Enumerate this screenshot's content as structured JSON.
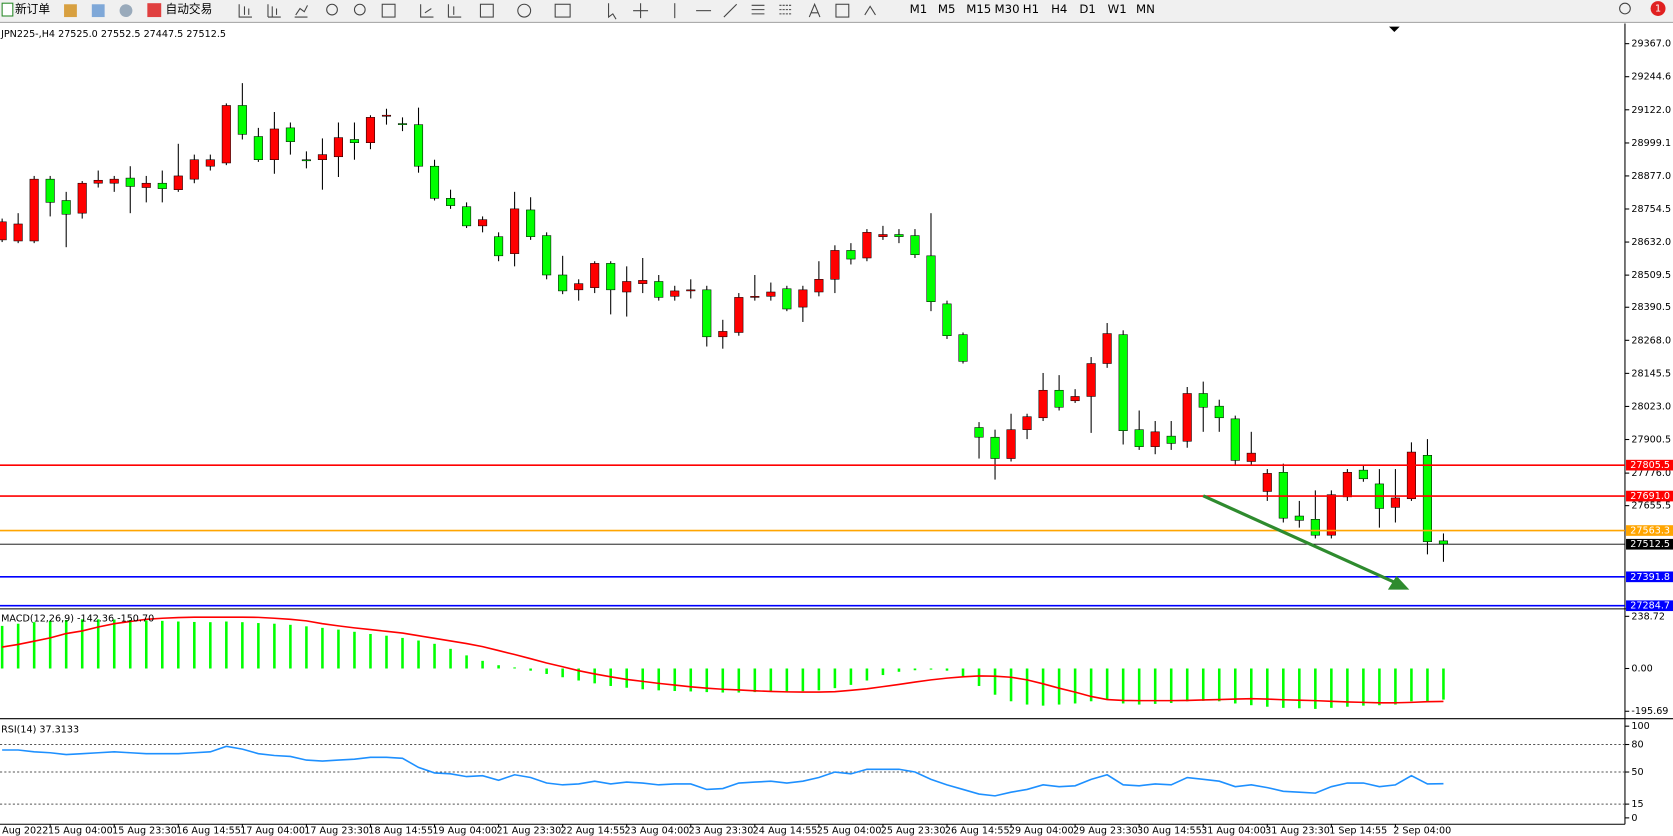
{
  "toolbar": {
    "new_order": "新订单",
    "auto_trading": "自动交易",
    "timeframes": [
      "M1",
      "M5",
      "M15",
      "M30",
      "H1",
      "H4",
      "D1",
      "W1",
      "MN"
    ],
    "notifications": "1"
  },
  "chart_data": [
    {
      "type": "candlestick",
      "title": "JPN225-,H4  27525.0 27552.5 27447.5 27512.5",
      "x_start_label": "Aug 2022",
      "categories": [
        null,
        null,
        null,
        "15 Aug 04:00",
        null,
        null,
        null,
        "15 Aug 23:30",
        null,
        null,
        null,
        "16 Aug 14:55",
        null,
        null,
        null,
        "17 Aug 04:00",
        null,
        null,
        null,
        "17 Aug 23:30",
        null,
        null,
        null,
        "18 Aug 14:55",
        null,
        null,
        null,
        "19 Aug 04:00",
        null,
        null,
        null,
        "21 Aug 23:30",
        null,
        null,
        null,
        "22 Aug 14:55",
        null,
        null,
        null,
        "23 Aug 04:00",
        null,
        null,
        null,
        "23 Aug 23:30",
        null,
        null,
        null,
        "24 Aug 14:55",
        null,
        null,
        null,
        "25 Aug 04:00",
        null,
        null,
        null,
        "25 Aug 23:30",
        null,
        null,
        null,
        "26 Aug 14:55",
        null,
        null,
        null,
        "29 Aug 04:00",
        null,
        null,
        null,
        "29 Aug 23:30",
        null,
        null,
        null,
        "30 Aug 14:55",
        null,
        null,
        null,
        "31 Aug 04:00",
        null,
        null,
        null,
        "31 Aug 23:30",
        null,
        null,
        null,
        "1 Sep 14:55",
        null,
        null,
        null,
        "2 Sep 04:00",
        null,
        null,
        null
      ],
      "open": [
        28640,
        28636,
        28636,
        28865,
        28786,
        28739,
        28850,
        28850,
        28869,
        28834,
        28850,
        28826,
        28865,
        28913,
        28925,
        29138,
        29023,
        28937,
        29055,
        28937,
        28937,
        28948,
        29012,
        29000,
        29098,
        29071,
        29067,
        28913,
        28794,
        28763,
        28692,
        28652,
        28589,
        28751,
        28656,
        28510,
        28455,
        28463,
        28553,
        28447,
        28478,
        28486,
        28431,
        28451,
        28455,
        28281,
        28297,
        28427,
        28431,
        28459,
        28391,
        28447,
        28494,
        28601,
        28573,
        28652,
        28660,
        28656,
        28581,
        28403,
        28289,
        27945,
        27909,
        27830,
        27937,
        27981,
        28083,
        28044,
        28060,
        28182,
        28289,
        27937,
        27874,
        27913,
        27894,
        28071,
        28024,
        27977,
        27819,
        27708,
        27779,
        27617,
        27605,
        27546,
        27688,
        27787,
        27736,
        27649,
        27681,
        27842,
        27525
      ],
      "high": [
        28719,
        28739,
        28877,
        28877,
        28818,
        28858,
        28897,
        28877,
        28913,
        28877,
        28897,
        28996,
        28956,
        28956,
        29146,
        29221,
        29055,
        29114,
        29075,
        28968,
        29016,
        29075,
        29075,
        29102,
        29126,
        29094,
        29130,
        28937,
        28826,
        28779,
        28727,
        28668,
        28818,
        28798,
        28668,
        28581,
        28494,
        28561,
        28561,
        28542,
        28573,
        28510,
        28470,
        28494,
        28470,
        28344,
        28443,
        28510,
        28482,
        28470,
        28470,
        28561,
        28620,
        28628,
        28680,
        28692,
        28680,
        28680,
        28739,
        28415,
        28297,
        27965,
        27937,
        27996,
        27996,
        28147,
        28139,
        28087,
        28206,
        28332,
        28305,
        28008,
        27969,
        27969,
        28095,
        28115,
        28048,
        27989,
        27929,
        27791,
        27811,
        27673,
        27712,
        27712,
        27791,
        27803,
        27791,
        27791,
        27890,
        27902,
        27552.5
      ],
      "low": [
        28632,
        28628,
        28628,
        28727,
        28613,
        28719,
        28834,
        28818,
        28739,
        28779,
        28779,
        28818,
        28850,
        28897,
        28917,
        29012,
        28929,
        28885,
        28956,
        28905,
        28826,
        28873,
        28937,
        28976,
        29067,
        29043,
        28889,
        28786,
        28755,
        28684,
        28668,
        28561,
        28542,
        28640,
        28494,
        28439,
        28415,
        28443,
        28364,
        28356,
        28443,
        28415,
        28415,
        28423,
        28245,
        28237,
        28285,
        28415,
        28415,
        28376,
        28336,
        28431,
        28443,
        28549,
        28561,
        28640,
        28628,
        28573,
        28376,
        28273,
        28182,
        27830,
        27752,
        27819,
        27902,
        27969,
        28008,
        28036,
        27925,
        28166,
        27882,
        27862,
        27846,
        27862,
        27870,
        27929,
        27929,
        27807,
        27807,
        27673,
        27593,
        27574,
        27534,
        27534,
        27673,
        27744,
        27574,
        27593,
        27673,
        27475,
        27447.5
      ],
      "close": [
        28707,
        28699,
        28865,
        28779,
        28735,
        28850,
        28861,
        28865,
        28838,
        28850,
        28830,
        28877,
        28937,
        28937,
        29138,
        29031,
        28937,
        29051,
        29004,
        28933,
        28956,
        29019,
        29000,
        29094,
        29102,
        29067,
        28913,
        28794,
        28767,
        28692,
        28715,
        28581,
        28755,
        28652,
        28510,
        28451,
        28478,
        28553,
        28455,
        28486,
        28490,
        28427,
        28451,
        28455,
        28281,
        28301,
        28427,
        28431,
        28447,
        28384,
        28455,
        28494,
        28601,
        28569,
        28668,
        28660,
        28652,
        28585,
        28411,
        28285,
        28190,
        27909,
        27830,
        27937,
        27985,
        28083,
        28020,
        28060,
        28182,
        28293,
        27933,
        27874,
        27929,
        27886,
        28071,
        28020,
        27981,
        27823,
        27850,
        27775,
        27609,
        27601,
        27546,
        27696,
        27779,
        27755,
        27645,
        27684,
        27854,
        27522,
        27512.5
      ],
      "up_color": "#ff0000",
      "down_color": "#00ff00",
      "ylim": [
        27277,
        29430
      ],
      "yticks": [
        {
          "value": 29367,
          "label": "29367.0"
        },
        29244.6,
        {
          "value": 29122,
          "label": "29122.0"
        },
        28999.1,
        {
          "value": 28877,
          "label": "28877.0"
        },
        28754.5,
        {
          "value": 28632,
          "label": "28632.0"
        },
        28509.5,
        28390.5,
        {
          "value": 28268,
          "label": "28268.0"
        },
        28145.5,
        {
          "value": 28023,
          "label": "28023.0"
        },
        27900.5,
        {
          "value": 27776,
          "label": "27776.0"
        },
        27655.5
      ],
      "levels": [
        {
          "value": 27805.5,
          "label": "27805.5",
          "color": "#ff0000"
        },
        {
          "value": 27691,
          "label": "27691.0",
          "color": "#ff0000"
        },
        {
          "value": 27563.3,
          "label": "27563.3",
          "color": "#ffa500"
        },
        {
          "value": 27512.5,
          "label": "27512.5",
          "color": "#000000"
        },
        {
          "value": 27391.8,
          "label": "27391.8",
          "color": "#0000ff"
        },
        {
          "value": 27284.7,
          "label": "27284.7",
          "color": "#0000ff"
        }
      ]
    },
    {
      "type": "macd",
      "title": "MACD(12,26,9) -142.36 -150.70",
      "ylim": [
        -220,
        268
      ],
      "yticks": [
        238.72,
        {
          "value": 0,
          "label": "0.00"
        },
        -195.69
      ],
      "series": [
        {
          "type": "bar",
          "color": "#00ff00",
          "values": [
            195,
            205,
            212,
            218,
            222,
            225,
            225,
            224,
            222,
            220,
            218,
            215,
            213,
            212,
            215,
            212,
            208,
            205,
            200,
            193,
            186,
            178,
            168,
            158,
            150,
            140,
            128,
            113,
            90,
            60,
            35,
            15,
            5,
            -10,
            -25,
            -40,
            -55,
            -68,
            -80,
            -88,
            -95,
            -100,
            -103,
            -105,
            -108,
            -110,
            -110,
            -108,
            -106,
            -105,
            -104,
            -100,
            -90,
            -75,
            -55,
            -30,
            -15,
            -8,
            -5,
            -10,
            -35,
            -80,
            -120,
            -150,
            -165,
            -170,
            -165,
            -160,
            -150,
            -140,
            -160,
            -165,
            -162,
            -158,
            -150,
            -148,
            -150,
            -160,
            -168,
            -175,
            -180,
            -182,
            -185,
            -180,
            -175,
            -170,
            -168,
            -165,
            -150,
            -155,
            -142.36
          ]
        },
        {
          "type": "line",
          "color": "#ff0000",
          "values": [
            98,
            110,
            125,
            140,
            160,
            172,
            190,
            205,
            215,
            225,
            230,
            233,
            235,
            235,
            235,
            235,
            234,
            230,
            225,
            218,
            205,
            195,
            186,
            178,
            170,
            162,
            150,
            138,
            126,
            114,
            100,
            82,
            64,
            45,
            25,
            8,
            -10,
            -25,
            -38,
            -50,
            -59,
            -68,
            -76,
            -84,
            -90,
            -95,
            -98,
            -102,
            -105,
            -107,
            -108,
            -108,
            -106,
            -100,
            -93,
            -83,
            -73,
            -62,
            -52,
            -44,
            -38,
            -34,
            -35,
            -40,
            -52,
            -70,
            -90,
            -108,
            -128,
            -142,
            -146,
            -147,
            -147,
            -147,
            -146,
            -144,
            -142,
            -140,
            -138,
            -140,
            -143,
            -145,
            -147,
            -150,
            -153,
            -155,
            -157,
            -157,
            -155,
            -152,
            -150.7
          ]
        }
      ]
    },
    {
      "type": "rsi",
      "title": "RSI(14) 37.3133",
      "ylim": [
        0,
        100
      ],
      "yticks": [
        100,
        80,
        50,
        15,
        0
      ],
      "series": [
        {
          "type": "line",
          "color": "#1e90ff",
          "values": [
            74,
            74,
            72,
            71,
            69,
            70,
            71,
            72,
            71,
            70,
            70,
            70,
            71,
            72,
            78,
            75,
            70,
            68,
            67,
            63,
            62,
            63,
            64,
            66,
            66,
            65,
            55,
            49,
            48,
            45,
            46,
            41,
            47,
            44,
            38,
            36,
            37,
            40,
            37,
            39,
            38,
            36,
            37,
            37,
            31,
            32,
            38,
            39,
            40,
            38,
            40,
            44,
            50,
            48,
            53,
            53,
            53,
            50,
            42,
            36,
            31,
            26,
            24,
            28,
            31,
            36,
            34,
            35,
            42,
            47,
            36,
            35,
            37,
            36,
            44,
            42,
            40,
            34,
            36,
            33,
            29,
            28,
            27,
            34,
            38,
            38,
            34,
            36,
            46,
            37,
            37.3133
          ]
        }
      ]
    }
  ]
}
